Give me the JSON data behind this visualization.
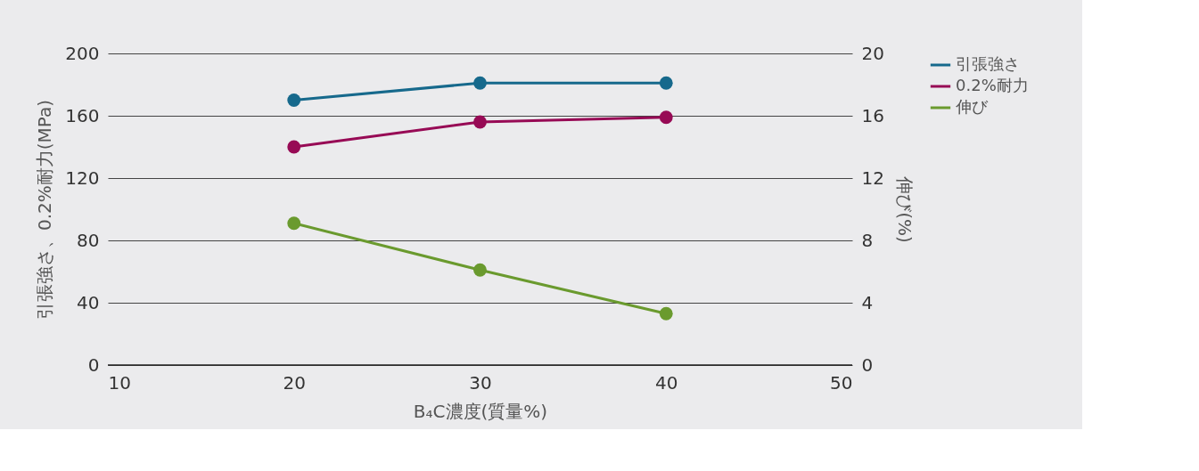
{
  "chart_data": {
    "type": "line",
    "xlabel": "B₄C濃度(質量%)",
    "ylabel": "引張強さ、0.2%耐力(MPa)",
    "y2label": "伸び(%)",
    "x": [
      20,
      30,
      40
    ],
    "series": [
      {
        "name": "引張強さ",
        "color": "#16698c",
        "values": [
          170,
          181,
          181
        ]
      },
      {
        "name": "0.2%耐力",
        "color": "#970a55",
        "values": [
          140,
          156,
          159
        ]
      },
      {
        "name": "伸び",
        "color": "#6a9a2e",
        "values": [
          9.1,
          6.1,
          3.3
        ],
        "axis": "y2"
      }
    ],
    "xlim": [
      10,
      50
    ],
    "xticks": [
      10,
      20,
      30,
      40,
      50
    ],
    "ylim": [
      0,
      200
    ],
    "yticks": [
      0,
      40,
      80,
      120,
      160,
      200
    ],
    "y2lim": [
      0,
      20
    ],
    "y2ticks": [
      0,
      4,
      8,
      12,
      16,
      20
    ],
    "grid": "y",
    "legend": "top right",
    "marker": "circle",
    "line_style": "solid"
  }
}
